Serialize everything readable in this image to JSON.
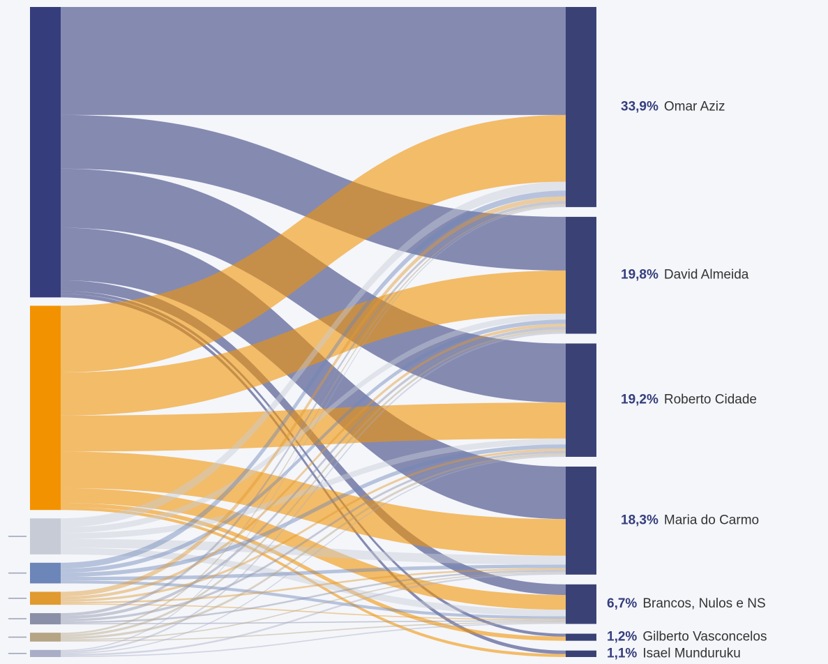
{
  "chart_data": {
    "type": "sankey",
    "categories": [
      "Omar Aziz",
      "David Almeida",
      "Roberto Cidade",
      "Maria do Carmo",
      "Brancos, Nulos e NS",
      "Gilberto Vasconcelos",
      "Isael Munduruku"
    ],
    "values": [
      33.9,
      19.8,
      19.2,
      18.3,
      6.7,
      1.2,
      1.1
    ],
    "value_labels": [
      "33,9%",
      "19,8%",
      "19,2%",
      "18,3%",
      "6,7%",
      "1,2%",
      "1,1%"
    ],
    "target_color": "#3a4275",
    "source_colors": [
      "#353d7c",
      "#f39200",
      "#c7cbd6",
      "#6d86b9",
      "#e09a30",
      "#8b90a8",
      "#b5a585",
      "#a9aec6"
    ],
    "links": [
      {
        "source": 0,
        "target": 0,
        "value": 18.3
      },
      {
        "source": 0,
        "target": 1,
        "value": 9.1
      },
      {
        "source": 0,
        "target": 2,
        "value": 10.0
      },
      {
        "source": 0,
        "target": 3,
        "value": 8.9
      },
      {
        "source": 0,
        "target": 4,
        "value": 1.8
      },
      {
        "source": 0,
        "target": 5,
        "value": 0.5
      },
      {
        "source": 0,
        "target": 6,
        "value": 0.6
      },
      {
        "source": 1,
        "target": 0,
        "value": 11.3
      },
      {
        "source": 1,
        "target": 1,
        "value": 7.3
      },
      {
        "source": 1,
        "target": 2,
        "value": 6.1
      },
      {
        "source": 1,
        "target": 3,
        "value": 6.2
      },
      {
        "source": 1,
        "target": 4,
        "value": 2.5
      },
      {
        "source": 1,
        "target": 5,
        "value": 0.7
      },
      {
        "source": 1,
        "target": 6,
        "value": 0.5
      },
      {
        "source": 2,
        "target": 0,
        "value": 1.5
      },
      {
        "source": 2,
        "target": 1,
        "value": 1.0
      },
      {
        "source": 2,
        "target": 2,
        "value": 1.0
      },
      {
        "source": 2,
        "target": 3,
        "value": 1.5
      },
      {
        "source": 2,
        "target": 4,
        "value": 1.1
      },
      {
        "source": 3,
        "target": 0,
        "value": 1.0
      },
      {
        "source": 3,
        "target": 1,
        "value": 0.7
      },
      {
        "source": 3,
        "target": 2,
        "value": 0.7
      },
      {
        "source": 3,
        "target": 3,
        "value": 0.6
      },
      {
        "source": 3,
        "target": 4,
        "value": 0.5
      },
      {
        "source": 4,
        "target": 0,
        "value": 0.8
      },
      {
        "source": 4,
        "target": 1,
        "value": 0.5
      },
      {
        "source": 4,
        "target": 2,
        "value": 0.4
      },
      {
        "source": 4,
        "target": 3,
        "value": 0.3
      },
      {
        "source": 4,
        "target": 4,
        "value": 0.2
      },
      {
        "source": 5,
        "target": 0,
        "value": 0.5
      },
      {
        "source": 5,
        "target": 1,
        "value": 0.5
      },
      {
        "source": 5,
        "target": 2,
        "value": 0.4
      },
      {
        "source": 5,
        "target": 3,
        "value": 0.3
      },
      {
        "source": 5,
        "target": 4,
        "value": 0.2
      },
      {
        "source": 6,
        "target": 0,
        "value": 0.3
      },
      {
        "source": 6,
        "target": 1,
        "value": 0.4
      },
      {
        "source": 6,
        "target": 2,
        "value": 0.4
      },
      {
        "source": 6,
        "target": 3,
        "value": 0.2
      },
      {
        "source": 6,
        "target": 4,
        "value": 0.2
      },
      {
        "source": 7,
        "target": 0,
        "value": 0.2
      },
      {
        "source": 7,
        "target": 1,
        "value": 0.3
      },
      {
        "source": 7,
        "target": 2,
        "value": 0.2
      },
      {
        "source": 7,
        "target": 3,
        "value": 0.3
      },
      {
        "source": 7,
        "target": 4,
        "value": 0.2
      }
    ]
  }
}
